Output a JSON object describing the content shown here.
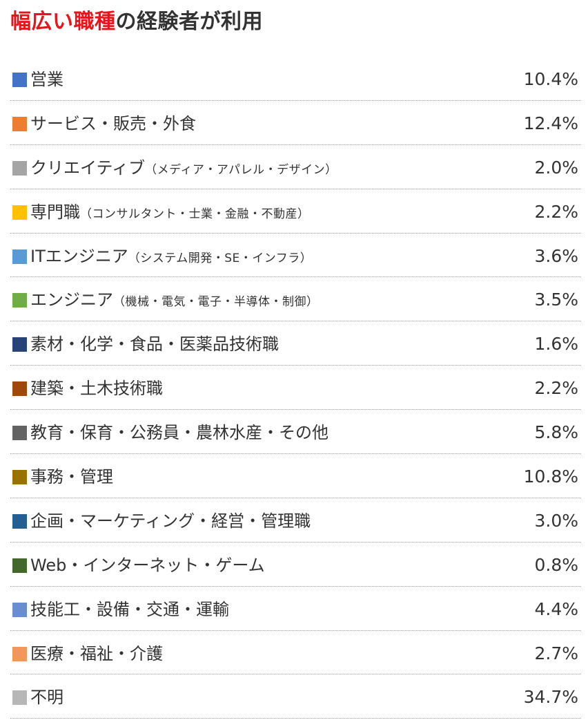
{
  "title": {
    "accent": "幅広い職種",
    "rest": "の経験者が利用",
    "accent_color": "#e8141a"
  },
  "chart_data": {
    "type": "table",
    "title": "幅広い職種の経験者が利用",
    "unit": "%",
    "rows": [
      {
        "label": "営業",
        "note": "",
        "value": "10.4%",
        "color": "#4472c4"
      },
      {
        "label": "サービス・販売・外食",
        "note": "",
        "value": "12.4%",
        "color": "#ed7d31"
      },
      {
        "label": "クリエイティブ",
        "note": "（メディア・アパレル・デザイン）",
        "value": "2.0%",
        "color": "#a5a5a5"
      },
      {
        "label": "専門職",
        "note": "（コンサルタント・士業・金融・不動産）",
        "value": "2.2%",
        "color": "#ffc000"
      },
      {
        "label": "ITエンジニア",
        "note": "（システム開発・SE・インフラ）",
        "value": "3.6%",
        "color": "#5b9bd5"
      },
      {
        "label": "エンジニア",
        "note": "（機械・電気・電子・半導体・制御）",
        "value": "3.5%",
        "color": "#70ad47"
      },
      {
        "label": "素材・化学・食品・医薬品技術職",
        "note": "",
        "value": "1.6%",
        "color": "#264478"
      },
      {
        "label": "建築・土木技術職",
        "note": "",
        "value": "2.2%",
        "color": "#9e480e"
      },
      {
        "label": "教育・保育・公務員・農林水産・その他",
        "note": "",
        "value": "5.8%",
        "color": "#636363"
      },
      {
        "label": "事務・管理",
        "note": "",
        "value": "10.8%",
        "color": "#997300"
      },
      {
        "label": "企画・マーケティング・経営・管理職",
        "note": "",
        "value": "3.0%",
        "color": "#255e91"
      },
      {
        "label": "Web・インターネット・ゲーム",
        "note": "",
        "value": "0.8%",
        "color": "#43682b"
      },
      {
        "label": "技能工・設備・交通・運輸",
        "note": "",
        "value": "4.4%",
        "color": "#698ed0"
      },
      {
        "label": "医療・福祉・介護",
        "note": "",
        "value": "2.7%",
        "color": "#f1975a"
      },
      {
        "label": "不明",
        "note": "",
        "value": "34.7%",
        "color": "#b7b7b7"
      }
    ]
  }
}
